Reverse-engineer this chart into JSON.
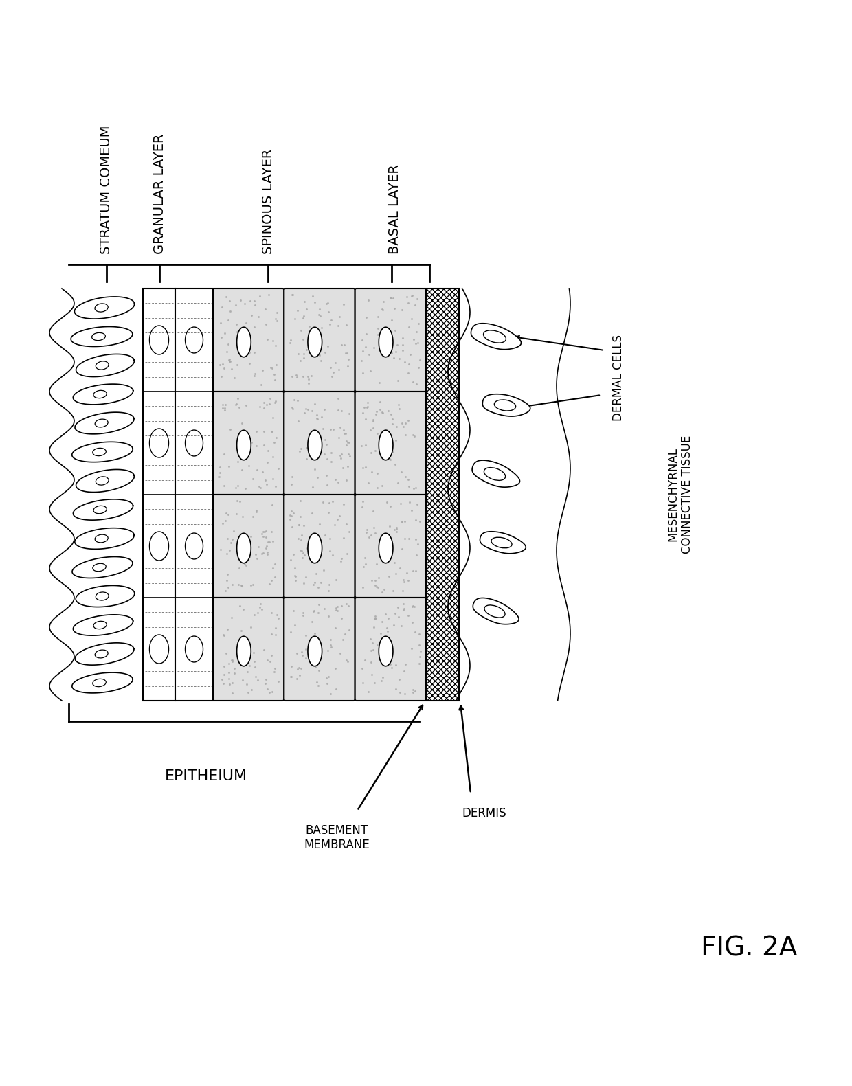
{
  "background_color": "#ffffff",
  "fig_label": "FIG. 2A",
  "layer_labels": [
    "STRATUM COMEUM",
    "GRANULAR LAYER",
    "SPINOUS LAYER",
    "BASAL LAYER"
  ],
  "epithelium_label": "EPITHEIUM",
  "basement_membrane_label": "BASEMENT\nMEMBRANE",
  "dermis_label": "DERMIS",
  "dermal_cells_label": "DERMAL CELLS",
  "connective_tissue_label": "MESENCHYRNAL\nCONNECTIVE TISSUE",
  "font_size_labels": 14,
  "font_size_fig": 28,
  "font_size_small": 12
}
